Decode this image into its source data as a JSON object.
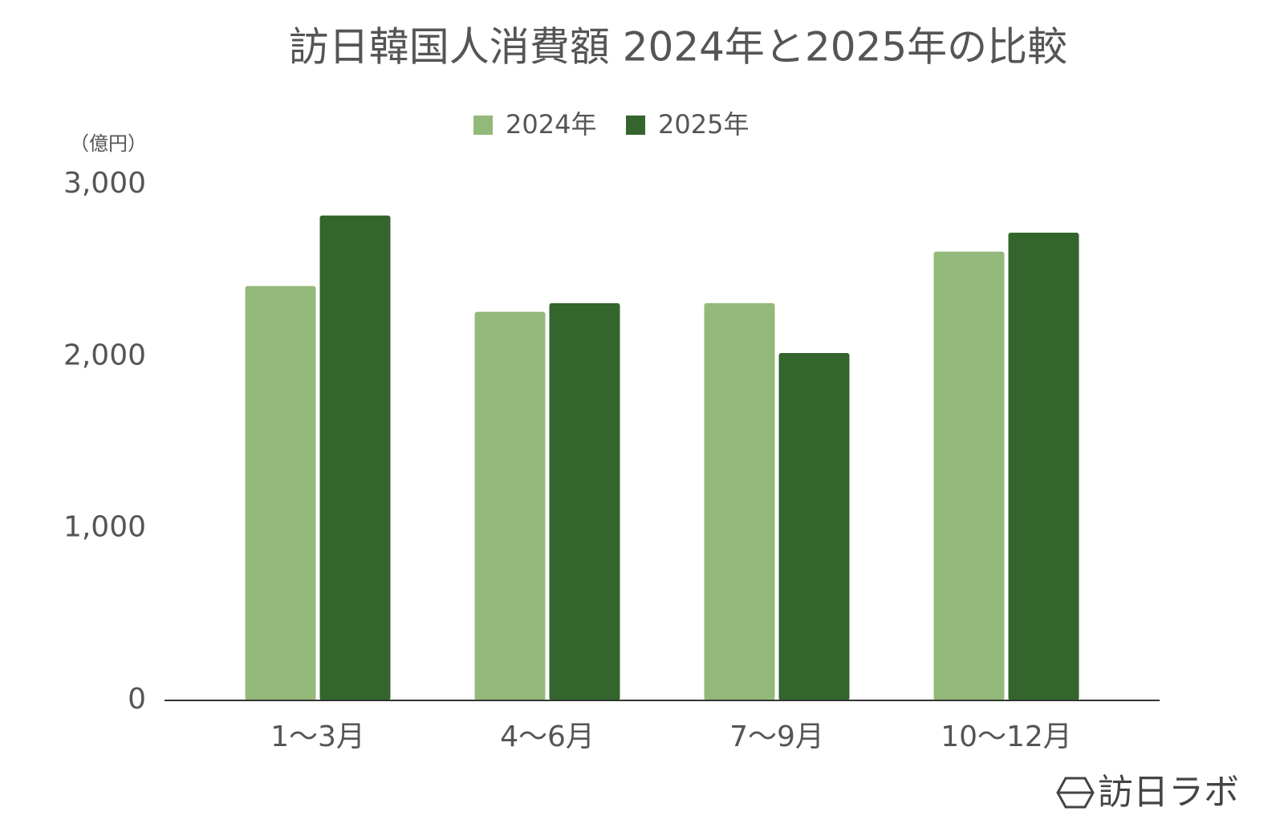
{
  "chart_data": {
    "type": "bar",
    "title": "訪日韓国人消費額 2024年と2025年の比較",
    "y_axis_label": "（億円）",
    "categories": [
      "1～3月",
      "4～6月",
      "7～9月",
      "10～12月"
    ],
    "series": [
      {
        "name": "2024年",
        "color": "#93b97a",
        "values": [
          2410,
          2260,
          2310,
          2610
        ]
      },
      {
        "name": "2025年",
        "color": "#33652c",
        "values": [
          2820,
          2310,
          2020,
          2720
        ]
      }
    ],
    "ylim": [
      0,
      3000
    ],
    "yticks": [
      0,
      {
        "value": 1000,
        "label": "1,000"
      },
      {
        "value": 2000,
        "label": "2,000"
      },
      {
        "value": 3000,
        "label": "3,000"
      }
    ],
    "legend": "top"
  },
  "logo": "訪日ラボ"
}
